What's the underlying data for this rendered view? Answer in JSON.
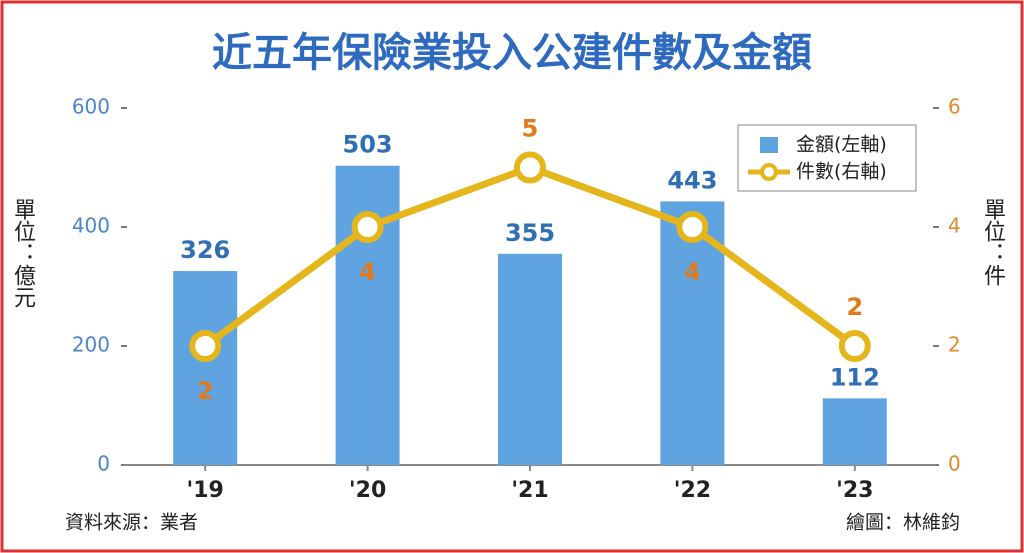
{
  "chart_data": {
    "type": "bar",
    "title": "近五年保險業投入公建件數及金額",
    "categories": [
      "'19",
      "'20",
      "'21",
      "'22",
      "'23"
    ],
    "series": [
      {
        "name": "金額(左軸)",
        "type": "bar",
        "color": "#5fa3e0",
        "values": [
          326,
          503,
          355,
          443,
          112
        ]
      },
      {
        "name": "件數(右軸)",
        "type": "line",
        "axis": "y2",
        "color": "#e5b61c",
        "label_color": "#e07a1c",
        "values": [
          2,
          4,
          5,
          4,
          2
        ]
      }
    ],
    "ylim": [
      0,
      600
    ],
    "yticks": [
      0,
      200,
      400,
      600
    ],
    "y2lim": [
      0,
      6
    ],
    "y2ticks": [
      0,
      2,
      4,
      6
    ],
    "ylabel": "單位：億元",
    "y2label": "單位：件",
    "source": "資料來源：業者",
    "credit": "繪圖：林維鈞"
  }
}
